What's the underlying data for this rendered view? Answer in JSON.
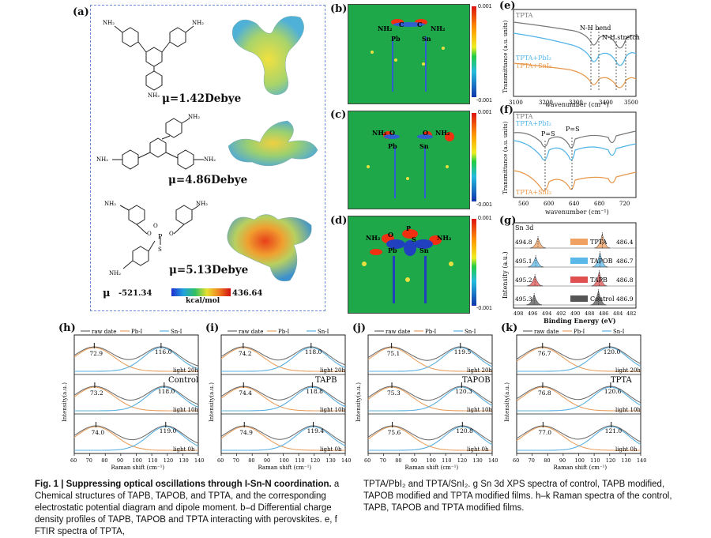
{
  "panel_a": {
    "label": "(a)",
    "molecules": [
      {
        "name": "TAPB",
        "dipole": "μ=1.42Debye",
        "substituent": "NH₂"
      },
      {
        "name": "TAPOB",
        "dipole": "μ=4.86Debye",
        "substituent": "NH₂"
      },
      {
        "name": "TPTA",
        "dipole": "μ=5.13Debye",
        "substituent": "NH₂",
        "core_p": "P",
        "core_s": "S",
        "core_o": "O"
      }
    ],
    "scale": {
      "mu": "μ",
      "min": "-521.34",
      "max": "436.64",
      "unit": "kcal/mol"
    }
  },
  "panels_dcd": [
    {
      "label": "(b)",
      "atoms": [
        "NH₂",
        "C",
        "C",
        "NH₂",
        "Pb",
        "Sn"
      ],
      "cmax": "0.001",
      "cmin": "-0.001"
    },
    {
      "label": "(c)",
      "atoms": [
        "NH₂",
        "O",
        "O",
        "NH₂",
        "Pb",
        "Sn"
      ],
      "cmax": "0.001",
      "cmin": "-0.001"
    },
    {
      "label": "(d)",
      "atoms": [
        "NH₂",
        "O",
        "P",
        "S",
        "NH₂",
        "Pb",
        "Sn"
      ],
      "cmax": "0.001",
      "cmin": "-0.001"
    }
  ],
  "panel_e": {
    "label": "(e)",
    "ylabel": "Transmittance (a.u. units)",
    "xlabel": "wavenumber (cm⁻¹)",
    "ticks": [
      "3100",
      "3200",
      "3300",
      "3400",
      "3500"
    ],
    "legend": [
      "TPTA",
      "TPTA+PbI₂",
      "TPTA+SnI₂"
    ],
    "annotations": [
      "N-H bend",
      "N-H stretch"
    ]
  },
  "panel_f": {
    "label": "(f)",
    "ylabel": "Transmittance (a.u. units)",
    "xlabel": "wavenumber (cm⁻¹)",
    "ticks": [
      "560",
      "600",
      "640",
      "680",
      "720"
    ],
    "legend": [
      "TPTA",
      "TPTA+PbI₂",
      "TPTA+SnI₂"
    ],
    "annotations": [
      "P=S",
      "P=S"
    ]
  },
  "panel_g": {
    "label": "(g)",
    "title": "Sn 3d",
    "ylabel": "Intensity (a.u.)",
    "xlabel": "Binding Energy (eV)",
    "ticks": [
      "498",
      "496",
      "494",
      "492",
      "490",
      "488",
      "486",
      "484",
      "482"
    ],
    "rows": [
      {
        "name": "TPTA",
        "left": "494.8",
        "right": "486.4",
        "color": "#f0a060"
      },
      {
        "name": "TAPOB",
        "left": "495.1",
        "right": "486.7",
        "color": "#5ab8e8"
      },
      {
        "name": "TAPB",
        "left": "495.2",
        "right": "486.8",
        "color": "#e05050"
      },
      {
        "name": "Control",
        "left": "495.3",
        "right": "486.9",
        "color": "#555555"
      }
    ]
  },
  "chart_data": [
    {
      "type": "line",
      "panel": "(h)",
      "legend": [
        "raw date",
        "Pb-I",
        "Sn-I"
      ],
      "xlabel": "Raman shift (cm⁻¹)",
      "ylabel": "Intensity(a.u.)",
      "ticks": [
        "60",
        "70",
        "80",
        "90",
        "100",
        "110",
        "120",
        "130",
        "140"
      ],
      "sample": "Control",
      "rows": [
        {
          "time": "light 20h",
          "pb": 72.9,
          "sn": 116.0
        },
        {
          "time": "light 10h",
          "pb": 73.2,
          "sn": 118.0
        },
        {
          "time": "light 0h",
          "pb": 74.0,
          "sn": 119.0
        }
      ]
    },
    {
      "type": "line",
      "panel": "(i)",
      "legend": [
        "raw date",
        "Pb-I",
        "Sn-I"
      ],
      "xlabel": "Raman shift (cm⁻¹)",
      "ylabel": "Intensity(a.u.)",
      "ticks": [
        "60",
        "70",
        "80",
        "90",
        "100",
        "110",
        "120",
        "130",
        "140"
      ],
      "sample": "TAPB",
      "rows": [
        {
          "time": "light 20h",
          "pb": 74.2,
          "sn": 118.0
        },
        {
          "time": "light 10h",
          "pb": 74.4,
          "sn": 118.8
        },
        {
          "time": "light 0h",
          "pb": 74.9,
          "sn": 119.4
        }
      ]
    },
    {
      "type": "line",
      "panel": "(j)",
      "legend": [
        "raw date",
        "Pb-I",
        "Sn-I"
      ],
      "xlabel": "Raman shift (cm⁻¹)",
      "ylabel": "Intensity(a.u.)",
      "ticks": [
        "60",
        "70",
        "80",
        "90",
        "100",
        "110",
        "120",
        "130",
        "140"
      ],
      "sample": "TAPOB",
      "rows": [
        {
          "time": "light 20h",
          "pb": 75.1,
          "sn": 119.5
        },
        {
          "time": "light 10h",
          "pb": 75.3,
          "sn": 120.3
        },
        {
          "time": "light 0h",
          "pb": 75.6,
          "sn": 120.8
        }
      ]
    },
    {
      "type": "line",
      "panel": "(k)",
      "legend": [
        "raw date",
        "Pb-I",
        "Sn-I"
      ],
      "xlabel": "Raman shift (cm⁻¹)",
      "ylabel": "Intensity(a.u.)",
      "ticks": [
        "60",
        "70",
        "80",
        "90",
        "100",
        "110",
        "120",
        "130",
        "140"
      ],
      "sample": "TPTA",
      "rows": [
        {
          "time": "light 20h",
          "pb": 76.7,
          "sn": 120.0
        },
        {
          "time": "light 10h",
          "pb": 76.8,
          "sn": 120.6
        },
        {
          "time": "light 0h",
          "pb": 77.0,
          "sn": 121.0
        }
      ]
    }
  ],
  "caption": {
    "bold": "Fig. 1 | Suppressing optical oscillations through I-Sn-N coordination.",
    "left": " a Chemical structures of TAPB, TAPOB, and TPTA, and the corresponding electrostatic potential diagram and dipole moment. b–d Differential charge density profiles of TAPB, TAPOB and TPTA interacting with perovskites. e, f FTIR spectra of TPTA,",
    "right": "TPTA/PbI₂ and TPTA/SnI₂. g Sn 3d XPS spectra of control, TAPB modified, TAPOB modified and TPTA modified films. h–k Raman spectra of the control, TAPB, TAPOB and TPTA modified films."
  },
  "colors": {
    "raw": "#666666",
    "pb": "#e8a060",
    "sn": "#5ab0e0",
    "tpta": "#777777",
    "pbi": "#4fb3e8",
    "sni": "#e8974a"
  }
}
